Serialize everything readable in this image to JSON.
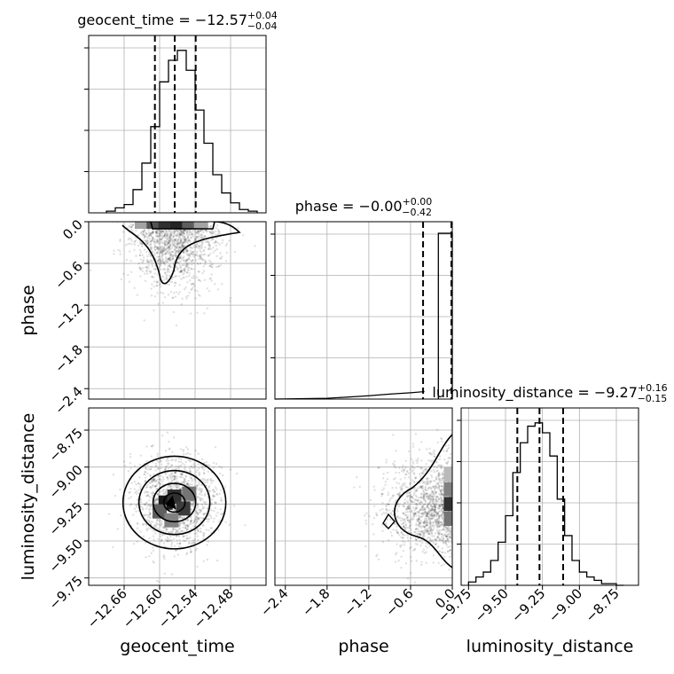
{
  "chart_data": {
    "type": "corner",
    "parameters": [
      "geocent_time",
      "phase",
      "luminosity_distance"
    ],
    "grid": true,
    "diagonal": [
      {
        "parameter": "geocent_time",
        "title_prefix": "geocent_time = ",
        "median": "−12.57",
        "plus": "+0.04",
        "minus": "−0.04",
        "quantiles": [
          -12.608,
          -12.5745,
          -12.539
        ],
        "range": [
          -12.72,
          -12.42
        ],
        "bins": [
          -12.69,
          -12.675,
          -12.66,
          -12.645,
          -12.63,
          -12.615,
          -12.6,
          -12.585,
          -12.57,
          -12.555,
          -12.54,
          -12.525,
          -12.51,
          -12.495,
          -12.48,
          -12.465,
          -12.45,
          -12.435
        ],
        "counts": [
          0.01,
          0.03,
          0.05,
          0.14,
          0.3,
          0.52,
          0.79,
          0.92,
          0.98,
          0.86,
          0.62,
          0.42,
          0.23,
          0.12,
          0.06,
          0.02,
          0.01
        ],
        "ylim": [
          0,
          1.07
        ]
      },
      {
        "parameter": "phase",
        "title_prefix": "phase = ",
        "median": "−0.00",
        "plus": "+0.00",
        "minus": "−0.42",
        "quantiles": [
          -0.42,
          -0.005,
          0.0
        ],
        "range": [
          -2.55,
          0.0
        ],
        "bins": [
          -0.2,
          0.0
        ],
        "counts": [
          1.0
        ],
        "tail": [
          [
            -1.8,
            0.005
          ],
          [
            -1.5,
            0.012
          ],
          [
            -1.2,
            0.02
          ],
          [
            -0.9,
            0.03
          ],
          [
            -0.6,
            0.038
          ],
          [
            -0.4,
            0.045
          ]
        ],
        "ylim": [
          0,
          1.07
        ]
      },
      {
        "parameter": "luminosity_distance",
        "title_prefix": "luminosity_distance = ",
        "median": "−9.27",
        "plus": "+0.16",
        "minus": "−0.15",
        "quantiles": [
          -9.42,
          -9.27,
          -9.11
        ],
        "range": [
          -9.8,
          -8.6
        ],
        "bins": [
          -9.75,
          -9.7,
          -9.65,
          -9.6,
          -9.55,
          -9.5,
          -9.45,
          -9.4,
          -9.35,
          -9.3,
          -9.25,
          -9.2,
          -9.15,
          -9.1,
          -9.05,
          -9.0,
          -8.95,
          -8.9,
          -8.85,
          -8.8,
          -8.75,
          -8.7
        ],
        "counts": [
          0.02,
          0.05,
          0.08,
          0.15,
          0.26,
          0.42,
          0.68,
          0.86,
          0.96,
          0.98,
          0.92,
          0.78,
          0.52,
          0.3,
          0.15,
          0.08,
          0.05,
          0.03,
          0.01,
          0.01,
          0.0
        ],
        "ylim": [
          0,
          1.07
        ]
      }
    ],
    "offdiagonal": [
      {
        "x": "geocent_time",
        "y": "phase",
        "center": [
          -12.575,
          0.0
        ],
        "spread": [
          0.035,
          0.45
        ],
        "density_bins": [
          [
            -12.63,
            0.0,
            0.4
          ],
          [
            -12.61,
            0.0,
            0.75
          ],
          [
            -12.59,
            0.0,
            0.9
          ],
          [
            -12.57,
            0.0,
            0.95
          ],
          [
            -12.55,
            0.0,
            0.7
          ],
          [
            -12.53,
            0.0,
            0.4
          ]
        ]
      },
      {
        "x": "geocent_time",
        "y": "luminosity_distance",
        "center": [
          -12.575,
          -9.24
        ],
        "spread": [
          0.035,
          0.16
        ],
        "density_bins": [
          [
            -12.59,
            -9.24,
            1.0
          ],
          [
            -12.575,
            -9.2,
            0.9
          ],
          [
            -12.56,
            -9.28,
            0.85
          ],
          [
            -12.6,
            -9.3,
            0.7
          ],
          [
            -12.55,
            -9.18,
            0.6
          ],
          [
            -12.58,
            -9.36,
            0.55
          ]
        ]
      },
      {
        "x": "phase",
        "y": "luminosity_distance",
        "center": [
          -0.05,
          -9.27
        ],
        "spread": [
          0.45,
          0.16
        ],
        "density_bins": [
          [
            -0.02,
            -9.35,
            0.6
          ],
          [
            -0.02,
            -9.25,
            0.9
          ],
          [
            -0.02,
            -9.15,
            0.55
          ],
          [
            -0.02,
            -9.05,
            0.3
          ]
        ]
      }
    ],
    "axes": {
      "geocent_time": {
        "xlim": [
          -12.72,
          -12.42
        ],
        "ticks": [
          -12.66,
          -12.6,
          -12.54,
          -12.48
        ],
        "tick_labels": [
          "−12.66",
          "−12.60",
          "−12.54",
          "−12.48"
        ],
        "label": "geocent_time"
      },
      "phase": {
        "xlim": [
          -2.55,
          0.0
        ],
        "ticks": [
          -2.4,
          -1.8,
          -1.2,
          -0.6,
          0.0
        ],
        "tick_labels": [
          "−2.4",
          "−1.8",
          "−1.2",
          "−0.6",
          "0.0"
        ],
        "label": "phase"
      },
      "luminosity_distance": {
        "xlim": [
          -9.8,
          -8.6
        ],
        "ticks": [
          -9.75,
          -9.5,
          -9.25,
          -9.0,
          -8.75
        ],
        "tick_labels": [
          "−9.75",
          "−9.50",
          "−9.25",
          "−9.00",
          "−8.75"
        ],
        "label": "luminosity_distance"
      }
    }
  }
}
